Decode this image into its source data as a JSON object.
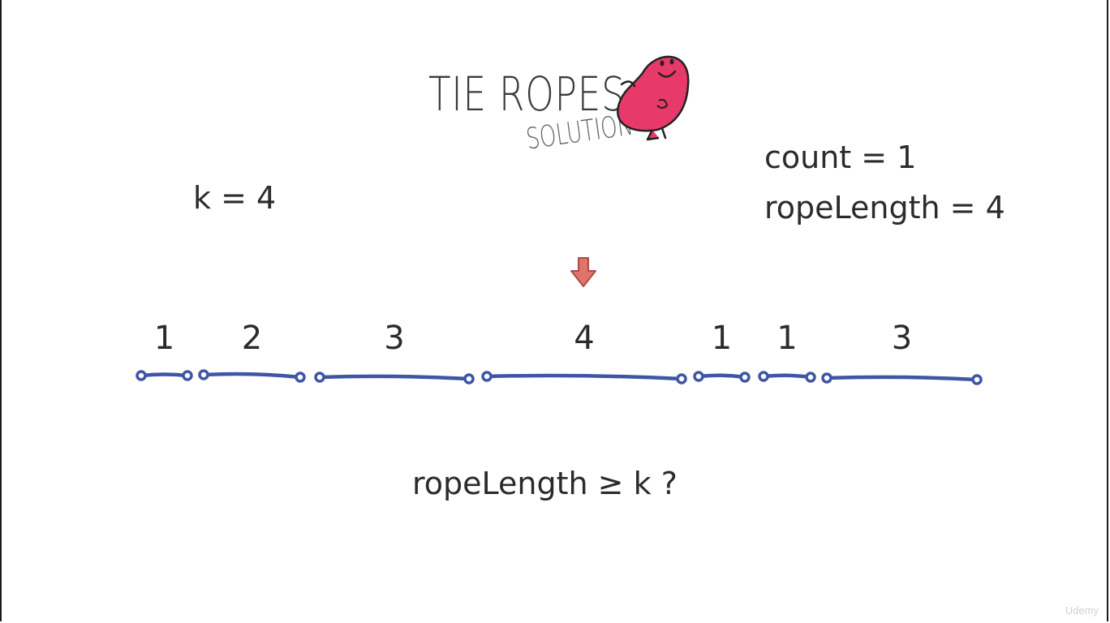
{
  "title": "TIE ROPES",
  "subtitle": "SOLUTION",
  "variables": {
    "k": "k = 4",
    "count": "count = 1",
    "ropeLength": "ropeLength = 4"
  },
  "ropes": [
    {
      "length": "1"
    },
    {
      "length": "2"
    },
    {
      "length": "3"
    },
    {
      "length": "4"
    },
    {
      "length": "1"
    },
    {
      "length": "1"
    },
    {
      "length": "3"
    }
  ],
  "pointer_rope_index": 3,
  "question": "ropeLength ≥ k ?",
  "watermark": "Udemy",
  "colors": {
    "rope": "#3f55a6",
    "arrow": "#e0746c",
    "mascot": "#e8396b"
  }
}
